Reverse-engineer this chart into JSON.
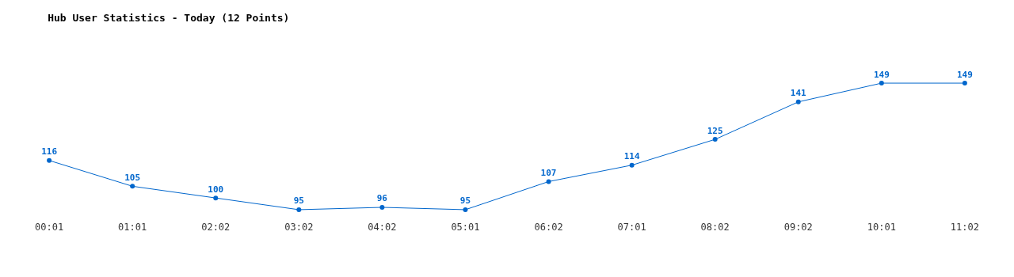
{
  "chart_data": {
    "type": "line",
    "title": "Hub User Statistics - Today (12 Points)",
    "categories": [
      "00:01",
      "01:01",
      "02:02",
      "03:02",
      "04:02",
      "05:01",
      "06:02",
      "07:01",
      "08:02",
      "09:02",
      "10:01",
      "11:02"
    ],
    "series": [
      {
        "color": "#0066cc",
        "values": [
          116,
          105,
          100,
          95,
          96,
          95,
          107,
          114,
          125,
          141,
          149,
          149
        ]
      }
    ],
    "data_labels": true,
    "marker": "circle",
    "line_style": "solid",
    "tick_labels": "x"
  }
}
